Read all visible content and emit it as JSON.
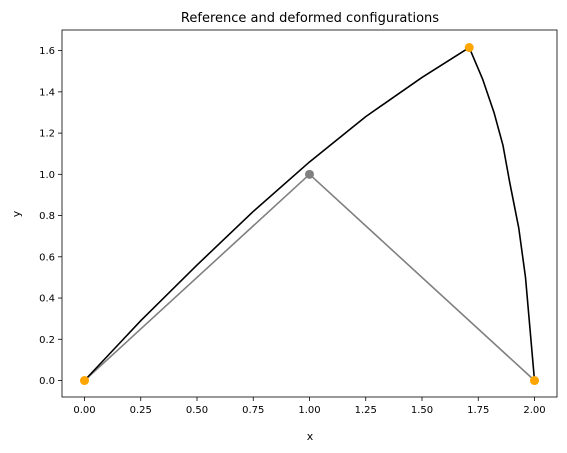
{
  "chart_data": {
    "type": "line",
    "title": "Reference and deformed configurations",
    "xlabel": "x",
    "ylabel": "y",
    "xlim": [
      -0.1,
      2.1
    ],
    "ylim": [
      -0.08,
      1.7
    ],
    "xticks": [
      0.0,
      0.25,
      0.5,
      0.75,
      1.0,
      1.25,
      1.5,
      1.75,
      2.0
    ],
    "xtick_labels": [
      "0.00",
      "0.25",
      "0.50",
      "0.75",
      "1.00",
      "1.25",
      "1.50",
      "1.75",
      "2.00"
    ],
    "yticks": [
      0.0,
      0.2,
      0.4,
      0.6,
      0.8,
      1.0,
      1.2,
      1.4,
      1.6
    ],
    "ytick_labels": [
      "0.0",
      "0.2",
      "0.4",
      "0.6",
      "0.8",
      "1.0",
      "1.2",
      "1.4",
      "1.6"
    ],
    "grid": false,
    "series": [
      {
        "color": "#808080",
        "marker_color": "#808080",
        "x": [
          0.0,
          1.0,
          2.0
        ],
        "y": [
          0.0,
          1.0,
          0.0
        ],
        "markers": [
          [
            1.0,
            1.0
          ]
        ]
      },
      {
        "color": "#000000",
        "marker_color": "#ffa500",
        "x": [
          0.0,
          0.25,
          0.5,
          0.75,
          1.0,
          1.25,
          1.5,
          1.71,
          1.77,
          1.82,
          1.86,
          1.89,
          1.93,
          1.96,
          1.98,
          2.0
        ],
        "y": [
          0.0,
          0.29,
          0.56,
          0.82,
          1.06,
          1.28,
          1.47,
          1.615,
          1.46,
          1.3,
          1.14,
          0.96,
          0.74,
          0.5,
          0.25,
          0.0
        ],
        "markers": [
          [
            0.0,
            0.0
          ],
          [
            1.71,
            1.615
          ],
          [
            2.0,
            0.0
          ]
        ]
      }
    ]
  }
}
